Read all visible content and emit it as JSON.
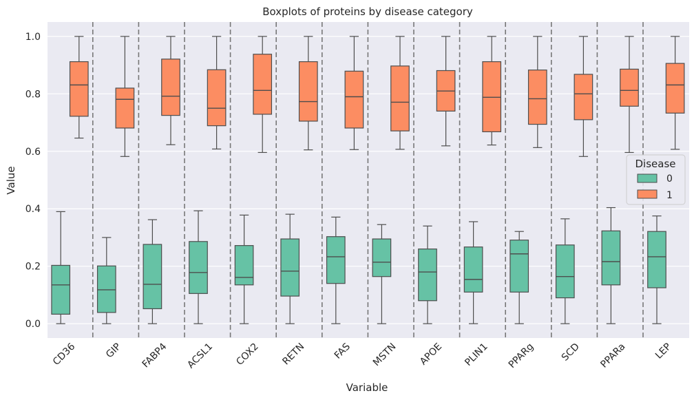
{
  "chart_data": {
    "type": "box",
    "title": "Boxplots of proteins by disease category",
    "xlabel": "Variable",
    "ylabel": "Value",
    "ylim": [
      -0.05,
      1.05
    ],
    "yticks": [
      0.0,
      0.2,
      0.4,
      0.6,
      0.8,
      1.0
    ],
    "ytick_labels": [
      "0.0",
      "0.2",
      "0.4",
      "0.6",
      "0.8",
      "1.0"
    ],
    "grid": true,
    "categories": [
      "CD36",
      "GIP",
      "FABP4",
      "ACSL1",
      "COX2",
      "RETN",
      "FAS",
      "MSTN",
      "APOE",
      "PLIN1",
      "PPARg",
      "SCD",
      "PPARa",
      "LEP"
    ],
    "legend": {
      "title": "Disease",
      "position": "right"
    },
    "series": [
      {
        "name": "0",
        "color": "#66c2a5",
        "boxes": [
          {
            "whislo": 0.0,
            "q1": 0.033,
            "med": 0.135,
            "q3": 0.203,
            "whishi": 0.39
          },
          {
            "whislo": 0.0,
            "q1": 0.039,
            "med": 0.118,
            "q3": 0.201,
            "whishi": 0.3
          },
          {
            "whislo": 0.0,
            "q1": 0.052,
            "med": 0.137,
            "q3": 0.276,
            "whishi": 0.362
          },
          {
            "whislo": 0.0,
            "q1": 0.105,
            "med": 0.178,
            "q3": 0.286,
            "whishi": 0.393
          },
          {
            "whislo": 0.0,
            "q1": 0.135,
            "med": 0.161,
            "q3": 0.272,
            "whishi": 0.378
          },
          {
            "whislo": 0.0,
            "q1": 0.096,
            "med": 0.183,
            "q3": 0.295,
            "whishi": 0.381
          },
          {
            "whislo": 0.0,
            "q1": 0.14,
            "med": 0.233,
            "q3": 0.303,
            "whishi": 0.371
          },
          {
            "whislo": 0.0,
            "q1": 0.164,
            "med": 0.214,
            "q3": 0.295,
            "whishi": 0.345
          },
          {
            "whislo": 0.0,
            "q1": 0.08,
            "med": 0.18,
            "q3": 0.26,
            "whishi": 0.34
          },
          {
            "whislo": 0.0,
            "q1": 0.11,
            "med": 0.154,
            "q3": 0.267,
            "whishi": 0.355
          },
          {
            "whislo": 0.0,
            "q1": 0.11,
            "med": 0.243,
            "q3": 0.291,
            "whishi": 0.321
          },
          {
            "whislo": 0.0,
            "q1": 0.09,
            "med": 0.164,
            "q3": 0.274,
            "whishi": 0.365
          },
          {
            "whislo": 0.0,
            "q1": 0.135,
            "med": 0.216,
            "q3": 0.323,
            "whishi": 0.404
          },
          {
            "whislo": 0.0,
            "q1": 0.125,
            "med": 0.233,
            "q3": 0.321,
            "whishi": 0.375
          }
        ]
      },
      {
        "name": "1",
        "color": "#fc8d62",
        "boxes": [
          {
            "whislo": 0.646,
            "q1": 0.722,
            "med": 0.831,
            "q3": 0.912,
            "whishi": 1.0
          },
          {
            "whislo": 0.582,
            "q1": 0.681,
            "med": 0.781,
            "q3": 0.82,
            "whishi": 1.0
          },
          {
            "whislo": 0.623,
            "q1": 0.725,
            "med": 0.792,
            "q3": 0.921,
            "whishi": 1.0
          },
          {
            "whislo": 0.608,
            "q1": 0.689,
            "med": 0.75,
            "q3": 0.884,
            "whishi": 1.0
          },
          {
            "whislo": 0.596,
            "q1": 0.729,
            "med": 0.812,
            "q3": 0.938,
            "whishi": 1.0
          },
          {
            "whislo": 0.605,
            "q1": 0.705,
            "med": 0.773,
            "q3": 0.912,
            "whishi": 1.0
          },
          {
            "whislo": 0.606,
            "q1": 0.681,
            "med": 0.79,
            "q3": 0.879,
            "whishi": 1.0
          },
          {
            "whislo": 0.607,
            "q1": 0.671,
            "med": 0.771,
            "q3": 0.897,
            "whishi": 1.0
          },
          {
            "whislo": 0.619,
            "q1": 0.74,
            "med": 0.81,
            "q3": 0.881,
            "whishi": 1.0
          },
          {
            "whislo": 0.622,
            "q1": 0.668,
            "med": 0.788,
            "q3": 0.912,
            "whishi": 1.0
          },
          {
            "whislo": 0.613,
            "q1": 0.694,
            "med": 0.783,
            "q3": 0.883,
            "whishi": 1.0
          },
          {
            "whislo": 0.582,
            "q1": 0.71,
            "med": 0.8,
            "q3": 0.868,
            "whishi": 1.0
          },
          {
            "whislo": 0.596,
            "q1": 0.757,
            "med": 0.812,
            "q3": 0.886,
            "whishi": 1.0
          },
          {
            "whislo": 0.607,
            "q1": 0.733,
            "med": 0.831,
            "q3": 0.906,
            "whishi": 1.0
          }
        ]
      }
    ]
  }
}
